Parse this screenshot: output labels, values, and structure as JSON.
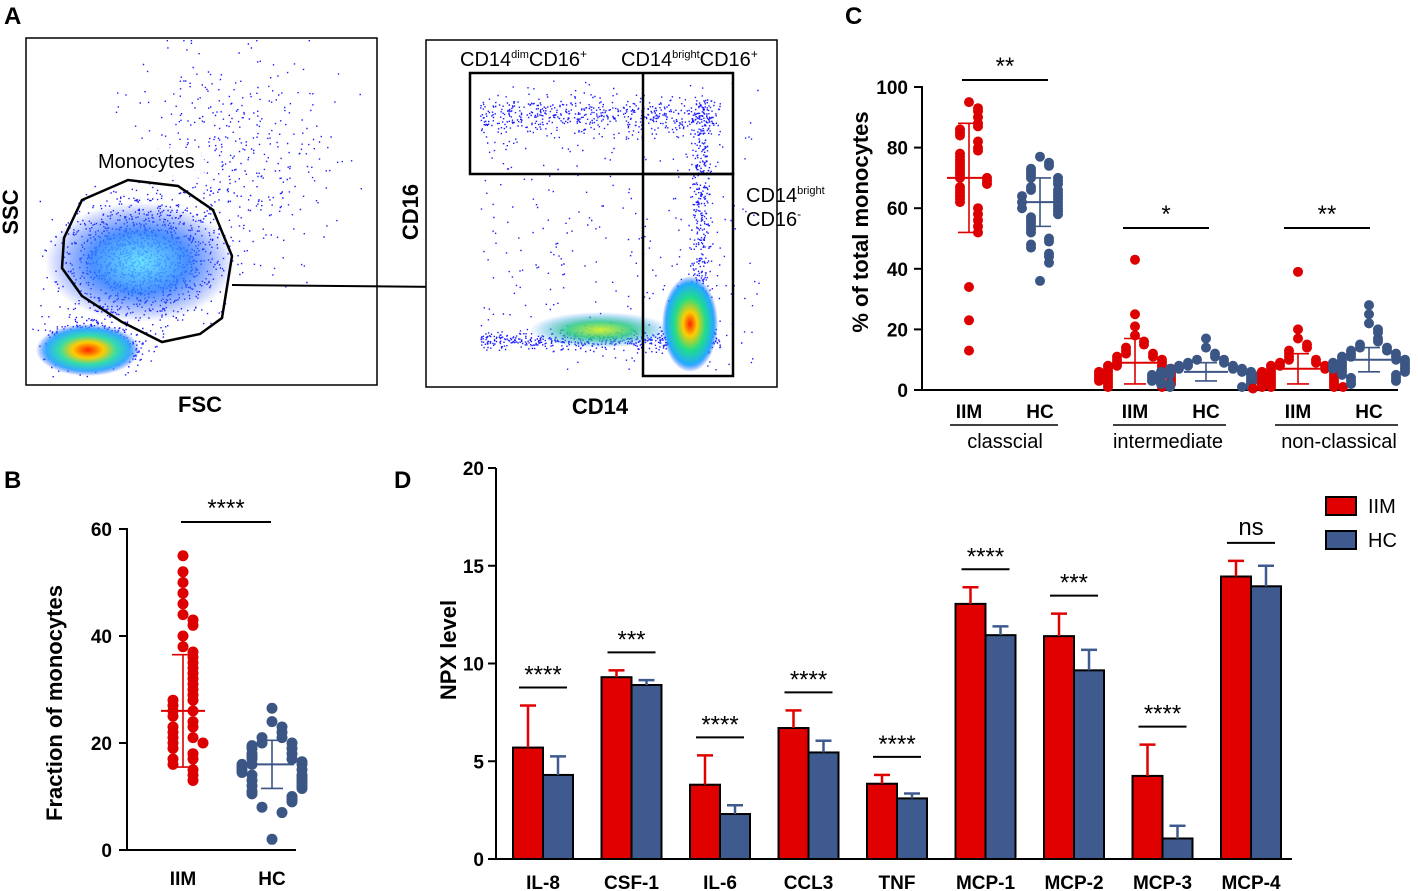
{
  "colors": {
    "iim": "#dd0000",
    "hc": "#3b5584",
    "iim_bar": "#e00000",
    "hc_bar": "#3e5a8e",
    "dots": "#1a1aff"
  },
  "panel_letters": [
    "A",
    "B",
    "C",
    "D"
  ],
  "chart_data": [
    {
      "panel": "A",
      "type": "scatter",
      "subtype": "flow-cytometry-density",
      "plots": [
        {
          "xlabel": "FSC",
          "ylabel": "SSC",
          "gate_label": "Monocytes"
        },
        {
          "xlabel": "CD14",
          "ylabel": "CD16",
          "gates": [
            {
              "base": "CD14",
              "sup1": "dim",
              "mid": "CD16",
              "sup2": "+"
            },
            {
              "base": "CD14",
              "sup1": "bright",
              "mid": "CD16",
              "sup2": "+"
            },
            {
              "base": "CD14",
              "sup1": "bright",
              "mid": "CD16",
              "sup2": "-"
            }
          ]
        }
      ]
    },
    {
      "panel": "B",
      "type": "scatter",
      "ylabel": "Fraction of monocytes",
      "ylim": [
        0,
        60
      ],
      "yticks": [
        0,
        20,
        40,
        60
      ],
      "categories": [
        "IIM",
        "HC"
      ],
      "significance": "****",
      "series": [
        {
          "name": "IIM",
          "mean": 26,
          "sd_low": 15.5,
          "sd_high": 36.5,
          "values": [
            55,
            52,
            50,
            48,
            46,
            44,
            43,
            42,
            40,
            38,
            37,
            36,
            35,
            34,
            33,
            32,
            31,
            30,
            29,
            28,
            28,
            27,
            26,
            26,
            25,
            24,
            23,
            23,
            22,
            21,
            21,
            20,
            20,
            19,
            18,
            17,
            17,
            16,
            15,
            14,
            13
          ]
        },
        {
          "name": "HC",
          "mean": 16,
          "sd_low": 11.5,
          "sd_high": 20.5,
          "values": [
            26.5,
            24,
            23,
            22,
            21,
            21,
            20,
            20,
            19.5,
            19,
            19,
            18,
            18,
            17.5,
            17,
            17,
            16.5,
            16,
            16,
            16,
            15.5,
            15,
            15,
            14.5,
            14,
            14,
            13.5,
            13,
            13,
            12.5,
            12,
            12,
            11.5,
            11,
            10.5,
            10,
            9.5,
            9,
            8,
            7,
            2
          ]
        }
      ]
    },
    {
      "panel": "C",
      "type": "scatter",
      "ylabel": "% of total monocytes",
      "ylim": [
        0,
        100
      ],
      "yticks": [
        0,
        20,
        40,
        60,
        80,
        100
      ],
      "groups": [
        {
          "label": "classcial",
          "significance": "**",
          "series": [
            {
              "name": "IIM",
              "mean": 70,
              "sd_low": 52,
              "sd_high": 88,
              "values": [
                95,
                93,
                92,
                90,
                88,
                87,
                86,
                85,
                84,
                82,
                80,
                79,
                78,
                77,
                76,
                75,
                74,
                73,
                72,
                71,
                70,
                70,
                69,
                68,
                67,
                66,
                65,
                64,
                63,
                62,
                60,
                58,
                56,
                54,
                52,
                34,
                23,
                13
              ]
            },
            {
              "name": "HC",
              "mean": 62,
              "sd_low": 54,
              "sd_high": 70,
              "values": [
                77,
                75,
                74,
                73,
                72,
                71,
                70,
                70,
                69,
                68,
                67,
                66,
                66,
                65,
                64,
                64,
                63,
                62,
                62,
                61,
                60,
                60,
                59,
                58,
                57,
                56,
                55,
                54,
                53,
                52,
                50,
                49,
                48,
                47,
                45,
                44,
                42,
                36
              ]
            }
          ]
        },
        {
          "label": "intermediate",
          "significance": "*",
          "series": [
            {
              "name": "IIM",
              "mean": 9,
              "sd_low": 2,
              "sd_high": 17,
              "values": [
                43,
                25,
                21,
                18,
                16,
                15,
                14,
                13,
                12,
                12,
                11,
                11,
                10,
                10,
                9,
                9,
                8,
                8,
                8,
                7,
                7,
                7,
                6,
                6,
                6,
                5,
                5,
                5,
                4,
                4,
                4,
                3,
                3,
                3,
                2,
                2,
                1,
                1
              ]
            },
            {
              "name": "HC",
              "mean": 6,
              "sd_low": 3,
              "sd_high": 9,
              "values": [
                17,
                14,
                12,
                11,
                10,
                10,
                9,
                9,
                8,
                8,
                8,
                7,
                7,
                7,
                7,
                6,
                6,
                6,
                6,
                5,
                5,
                5,
                5,
                5,
                4,
                4,
                4,
                4,
                3,
                3,
                3,
                3,
                2,
                2,
                2,
                1,
                1,
                1
              ]
            }
          ]
        },
        {
          "label": "non-classical",
          "significance": "**",
          "series": [
            {
              "name": "IIM",
              "mean": 7,
              "sd_low": 2,
              "sd_high": 12,
              "values": [
                39,
                20,
                17,
                15,
                14,
                13,
                12,
                11,
                10,
                10,
                9,
                9,
                8,
                8,
                8,
                7,
                7,
                7,
                6,
                6,
                6,
                5,
                5,
                5,
                4,
                4,
                4,
                3,
                3,
                3,
                2,
                2,
                2,
                1,
                1,
                1,
                1,
                0.5
              ]
            },
            {
              "name": "HC",
              "mean": 10,
              "sd_low": 6,
              "sd_high": 14,
              "values": [
                28,
                25,
                22,
                20,
                19,
                17,
                16,
                15,
                14,
                14,
                13,
                13,
                12,
                12,
                11,
                11,
                11,
                10,
                10,
                10,
                9,
                9,
                9,
                8,
                8,
                8,
                7,
                7,
                7,
                6,
                6,
                5,
                5,
                4,
                4,
                3,
                3,
                2
              ]
            }
          ]
        }
      ],
      "categories": [
        "IIM",
        "HC"
      ]
    },
    {
      "panel": "D",
      "type": "bar",
      "ylabel": "NPX level",
      "ylim": [
        0,
        20
      ],
      "yticks": [
        0,
        5,
        10,
        15,
        20
      ],
      "categories": [
        "IL-8",
        "CSF-1",
        "IL-6",
        "CCL3",
        "TNF",
        "MCP-1",
        "MCP-2",
        "MCP-3",
        "MCP-4"
      ],
      "significance": [
        "****",
        "***",
        "****",
        "****",
        "****",
        "****",
        "***",
        "****",
        "ns"
      ],
      "legend": [
        "IIM",
        "HC"
      ],
      "legend_position": "top-right",
      "series": [
        {
          "name": "IIM",
          "values": [
            5.7,
            9.3,
            3.8,
            6.7,
            3.85,
            13.05,
            11.4,
            4.25,
            14.45
          ],
          "errors": [
            2.15,
            0.35,
            1.5,
            0.9,
            0.45,
            0.85,
            1.15,
            1.6,
            0.8
          ]
        },
        {
          "name": "HC",
          "values": [
            4.3,
            8.9,
            2.3,
            5.45,
            3.1,
            11.45,
            9.65,
            1.05,
            13.95
          ],
          "errors": [
            0.95,
            0.25,
            0.45,
            0.6,
            0.25,
            0.45,
            1.05,
            0.65,
            1.05
          ]
        }
      ]
    }
  ]
}
